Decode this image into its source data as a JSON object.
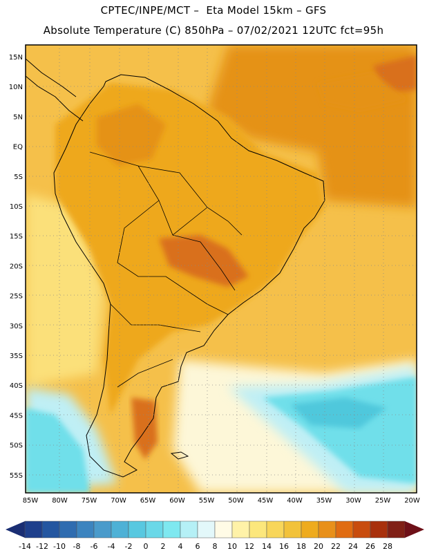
{
  "header": {
    "line1": "CPTEC/INPE/MCT –  Eta Model 15km – GFS",
    "line2": "Absolute Temperature (C) 850hPa – 07/02/2021 12UTC fct=95h"
  },
  "map": {
    "lat_labels": [
      "15N",
      "10N",
      "5N",
      "EQ",
      "5S",
      "10S",
      "15S",
      "20S",
      "25S",
      "30S",
      "35S",
      "40S",
      "45S",
      "50S",
      "55S"
    ],
    "lon_labels": [
      "85W",
      "80W",
      "75W",
      "70W",
      "65W",
      "60W",
      "55W",
      "50W",
      "45W",
      "40W",
      "35W",
      "30W",
      "25W",
      "20W"
    ],
    "colors": {
      "ocean_warm": "#f5c04a",
      "land_base": "#eea81e",
      "land_hot": "#e59216",
      "hotspot": "#d9701a",
      "cool_yellow": "#fbe07a",
      "pale": "#fdf7d8",
      "light_cyan": "#bfeff5",
      "cyan": "#6fdfea",
      "deep_cyan": "#4fc8dc"
    }
  },
  "colorbar": {
    "ticks": [
      "-14",
      "-12",
      "-10",
      "-8",
      "-6",
      "-4",
      "-2",
      "0",
      "2",
      "4",
      "6",
      "8",
      "10",
      "12",
      "14",
      "16",
      "18",
      "20",
      "22",
      "24",
      "26",
      "28"
    ],
    "colors": [
      "#1e3f8c",
      "#2456a0",
      "#2f6cb0",
      "#3c84bf",
      "#4a9bcb",
      "#4eb1d6",
      "#58c8e0",
      "#6ad8e8",
      "#7ee8f0",
      "#b5f0f6",
      "#e3f8fa",
      "#fffbe6",
      "#fff2a8",
      "#fce77c",
      "#f8d65a",
      "#f2c23a",
      "#eeab1e",
      "#e8901a",
      "#e06c12",
      "#c84c0e",
      "#a8300c",
      "#802016"
    ],
    "left_arrow_color": "#1a2e73",
    "right_arrow_color": "#6e1018"
  }
}
